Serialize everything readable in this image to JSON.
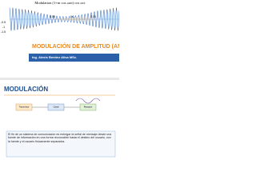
{
  "slide1": {
    "plot": {
      "title": "Modulation (1+m cos ωₘt) cos ωct",
      "yticks": [
        "-0.5",
        "-1",
        "-1.5"
      ],
      "xticks": [
        "0.05",
        "0.1",
        "0.15"
      ]
    },
    "title": "MODULACIÓN DE AMPLITUD (AM)",
    "author": "Ing. Alexis Benitez Alisa MSc."
  },
  "slide2": {
    "heading": "MODULACIÓN",
    "diagram": {
      "nodes": [
        "Transmisor",
        "Canal",
        "Receptor"
      ]
    },
    "text": "El fin de un sistema de comunicación es entregar la señal de mensaje desde una fuente de información en una forma reconocible hasta el destino del usuario, con la fuente y el usuario físicamente separados."
  }
}
